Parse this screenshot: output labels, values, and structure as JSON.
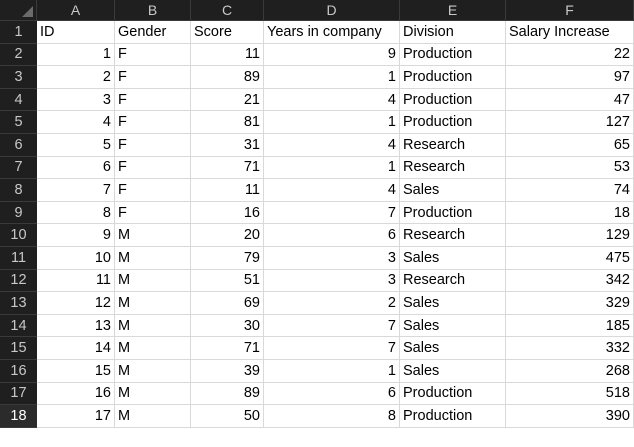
{
  "column_headers": [
    "A",
    "B",
    "C",
    "D",
    "E",
    "F"
  ],
  "row_numbers": [
    "1",
    "2",
    "3",
    "4",
    "5",
    "6",
    "7",
    "8",
    "9",
    "10",
    "11",
    "12",
    "13",
    "14",
    "15",
    "16",
    "17",
    "18"
  ],
  "selected_row": "18",
  "table": {
    "headers": [
      "ID",
      "Gender",
      "Score",
      "Years in company",
      "Division",
      "Salary Increase"
    ],
    "rows": [
      [
        "1",
        "F",
        "11",
        "9",
        "Production",
        "22"
      ],
      [
        "2",
        "F",
        "89",
        "1",
        "Production",
        "97"
      ],
      [
        "3",
        "F",
        "21",
        "4",
        "Production",
        "47"
      ],
      [
        "4",
        "F",
        "81",
        "1",
        "Production",
        "127"
      ],
      [
        "5",
        "F",
        "31",
        "4",
        "Research",
        "65"
      ],
      [
        "6",
        "F",
        "71",
        "1",
        "Research",
        "53"
      ],
      [
        "7",
        "F",
        "11",
        "4",
        "Sales",
        "74"
      ],
      [
        "8",
        "F",
        "16",
        "7",
        "Production",
        "18"
      ],
      [
        "9",
        "M",
        "20",
        "6",
        "Research",
        "129"
      ],
      [
        "10",
        "M",
        "79",
        "3",
        "Sales",
        "475"
      ],
      [
        "11",
        "M",
        "51",
        "3",
        "Research",
        "342"
      ],
      [
        "12",
        "M",
        "69",
        "2",
        "Sales",
        "329"
      ],
      [
        "13",
        "M",
        "30",
        "7",
        "Sales",
        "185"
      ],
      [
        "14",
        "M",
        "71",
        "7",
        "Sales",
        "332"
      ],
      [
        "15",
        "M",
        "39",
        "1",
        "Sales",
        "268"
      ],
      [
        "16",
        "M",
        "89",
        "6",
        "Production",
        "518"
      ],
      [
        "17",
        "M",
        "50",
        "8",
        "Production",
        "390"
      ]
    ]
  }
}
